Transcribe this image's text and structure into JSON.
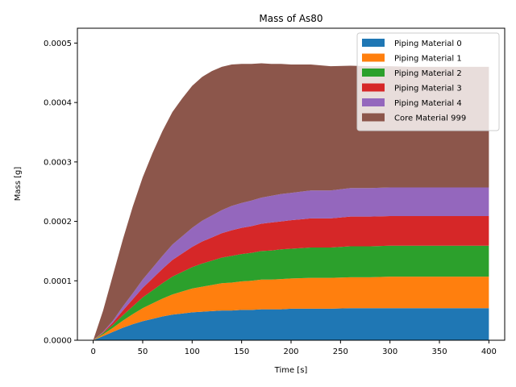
{
  "chart_data": {
    "type": "area",
    "stacked": true,
    "title": "Mass of As80",
    "xlabel": "Time [s]",
    "ylabel": "Mass [g]",
    "xlim": [
      -16,
      416
    ],
    "ylim": [
      0,
      0.000525
    ],
    "xticks": [
      0,
      50,
      100,
      150,
      200,
      250,
      300,
      350,
      400
    ],
    "xtick_labels": [
      "0",
      "50",
      "100",
      "150",
      "200",
      "250",
      "300",
      "350",
      "400"
    ],
    "yticks": [
      0,
      0.0001,
      0.0002,
      0.0003,
      0.0004,
      0.0005
    ],
    "ytick_labels": [
      "0.0000",
      "0.0001",
      "0.0002",
      "0.0003",
      "0.0004",
      "0.0005"
    ],
    "grid": false,
    "legend_position": "top-right",
    "x": [
      0,
      10,
      20,
      30,
      40,
      50,
      60,
      70,
      80,
      90,
      100,
      110,
      120,
      130,
      140,
      150,
      160,
      170,
      180,
      190,
      200,
      220,
      240,
      260,
      280,
      300,
      320,
      340,
      360,
      380,
      400
    ],
    "series": [
      {
        "name": "Piping Material 0",
        "color": "#1f77b4",
        "values": [
          0,
          7e-06,
          1.4e-05,
          2.1e-05,
          2.7e-05,
          3.2e-05,
          3.6e-05,
          4e-05,
          4.3e-05,
          4.5e-05,
          4.7e-05,
          4.8e-05,
          4.9e-05,
          5e-05,
          5e-05,
          5.1e-05,
          5.1e-05,
          5.2e-05,
          5.2e-05,
          5.2e-05,
          5.3e-05,
          5.3e-05,
          5.3e-05,
          5.4e-05,
          5.4e-05,
          5.4e-05,
          5.4e-05,
          5.4e-05,
          5.4e-05,
          5.4e-05,
          5.4e-05
        ]
      },
      {
        "name": "Piping Material 1",
        "color": "#ff7f0e",
        "values": [
          0,
          3e-06,
          7e-06,
          1.2e-05,
          1.7e-05,
          2.2e-05,
          2.6e-05,
          3e-05,
          3.4e-05,
          3.7e-05,
          4e-05,
          4.2e-05,
          4.4e-05,
          4.6e-05,
          4.7e-05,
          4.8e-05,
          4.9e-05,
          5e-05,
          5e-05,
          5.1e-05,
          5.1e-05,
          5.2e-05,
          5.2e-05,
          5.2e-05,
          5.2e-05,
          5.3e-05,
          5.3e-05,
          5.3e-05,
          5.3e-05,
          5.3e-05,
          5.3e-05
        ]
      },
      {
        "name": "Piping Material 2",
        "color": "#2ca02c",
        "values": [
          0,
          2e-06,
          5e-06,
          9e-06,
          1.3e-05,
          1.8e-05,
          2.2e-05,
          2.6e-05,
          3e-05,
          3.3e-05,
          3.6e-05,
          3.9e-05,
          4.1e-05,
          4.3e-05,
          4.5e-05,
          4.6e-05,
          4.7e-05,
          4.8e-05,
          4.9e-05,
          5e-05,
          5e-05,
          5.1e-05,
          5.1e-05,
          5.2e-05,
          5.2e-05,
          5.2e-05,
          5.2e-05,
          5.2e-05,
          5.2e-05,
          5.2e-05,
          5.2e-05
        ]
      },
      {
        "name": "Piping Material 3",
        "color": "#d62728",
        "values": [
          0,
          1e-06,
          4e-06,
          8e-06,
          1.2e-05,
          1.6e-05,
          2e-05,
          2.4e-05,
          2.8e-05,
          3.1e-05,
          3.4e-05,
          3.7e-05,
          3.9e-05,
          4.1e-05,
          4.3e-05,
          4.4e-05,
          4.5e-05,
          4.6e-05,
          4.7e-05,
          4.7e-05,
          4.8e-05,
          4.9e-05,
          4.9e-05,
          5e-05,
          5e-05,
          5e-05,
          5e-05,
          5e-05,
          5e-05,
          5e-05,
          5e-05
        ]
      },
      {
        "name": "Piping Material 4",
        "color": "#9467bd",
        "values": [
          0,
          1e-06,
          3e-06,
          7e-06,
          1e-05,
          1.4e-05,
          1.8e-05,
          2.2e-05,
          2.6e-05,
          2.9e-05,
          3.2e-05,
          3.5e-05,
          3.7e-05,
          3.9e-05,
          4.1e-05,
          4.2e-05,
          4.3e-05,
          4.4e-05,
          4.5e-05,
          4.6e-05,
          4.6e-05,
          4.7e-05,
          4.7e-05,
          4.8e-05,
          4.8e-05,
          4.8e-05,
          4.8e-05,
          4.8e-05,
          4.8e-05,
          4.8e-05,
          4.8e-05
        ]
      },
      {
        "name": "Core Material 999",
        "color": "#8c564b",
        "values": [
          0,
          3.6e-05,
          7.7e-05,
          0.000113,
          0.000146,
          0.000172,
          0.000193,
          0.00021,
          0.000223,
          0.000232,
          0.000239,
          0.000242,
          0.000243,
          0.000241,
          0.000238,
          0.000234,
          0.00023,
          0.000226,
          0.000222,
          0.000219,
          0.000216,
          0.000212,
          0.000209,
          0.000206,
          0.000205,
          0.000204,
          0.000203,
          0.000203,
          0.000203,
          0.000203,
          0.000203
        ]
      }
    ]
  }
}
